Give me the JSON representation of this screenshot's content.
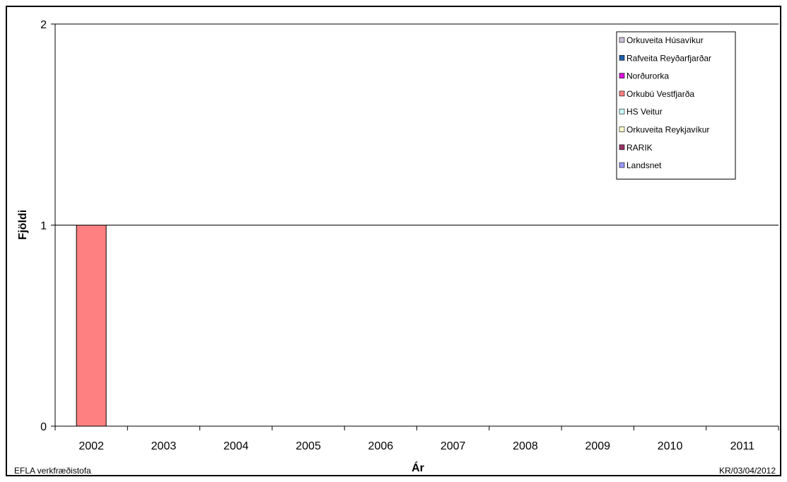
{
  "chart_data": {
    "type": "bar",
    "title": "",
    "xlabel": "Ár",
    "ylabel": "Fjöldi",
    "categories": [
      "2002",
      "2003",
      "2004",
      "2005",
      "2006",
      "2007",
      "2008",
      "2009",
      "2010",
      "2011"
    ],
    "yticks": [
      "0",
      "1",
      "2"
    ],
    "ylim": [
      0,
      2
    ],
    "grid": "horizontal",
    "legend_position": "top-right",
    "series": [
      {
        "name": "Orkuveita Húsavíkur",
        "color": "#ccc0da",
        "values": [
          0,
          0,
          0,
          0,
          0,
          0,
          0,
          0,
          0,
          0
        ]
      },
      {
        "name": "Rafveita Reyðarfjarðar",
        "color": "#1f5fa8",
        "values": [
          0,
          0,
          0,
          0,
          0,
          0,
          0,
          0,
          0,
          0
        ]
      },
      {
        "name": "Norðurorka",
        "color": "#d814d8",
        "values": [
          0,
          0,
          0,
          0,
          0,
          0,
          0,
          0,
          0,
          0
        ]
      },
      {
        "name": "Orkubú Vestfjarða",
        "color": "#ff8080",
        "values": [
          1,
          0,
          0,
          0,
          0,
          0,
          0,
          0,
          0,
          0
        ]
      },
      {
        "name": "HS Veitur",
        "color": "#ccffff",
        "values": [
          0,
          0,
          0,
          0,
          0,
          0,
          0,
          0,
          0,
          0
        ]
      },
      {
        "name": "Orkuveita Reykjavíkur",
        "color": "#ffffcc",
        "values": [
          0,
          0,
          0,
          0,
          0,
          0,
          0,
          0,
          0,
          0
        ]
      },
      {
        "name": "RARIK",
        "color": "#993366",
        "values": [
          0,
          0,
          0,
          0,
          0,
          0,
          0,
          0,
          0,
          0
        ]
      },
      {
        "name": "Landsnet",
        "color": "#9999ff",
        "values": [
          0,
          0,
          0,
          0,
          0,
          0,
          0,
          0,
          0,
          0
        ]
      }
    ]
  },
  "footer": {
    "left": "EFLA verkfræðistofa",
    "right": "KR/03/04/2012"
  }
}
